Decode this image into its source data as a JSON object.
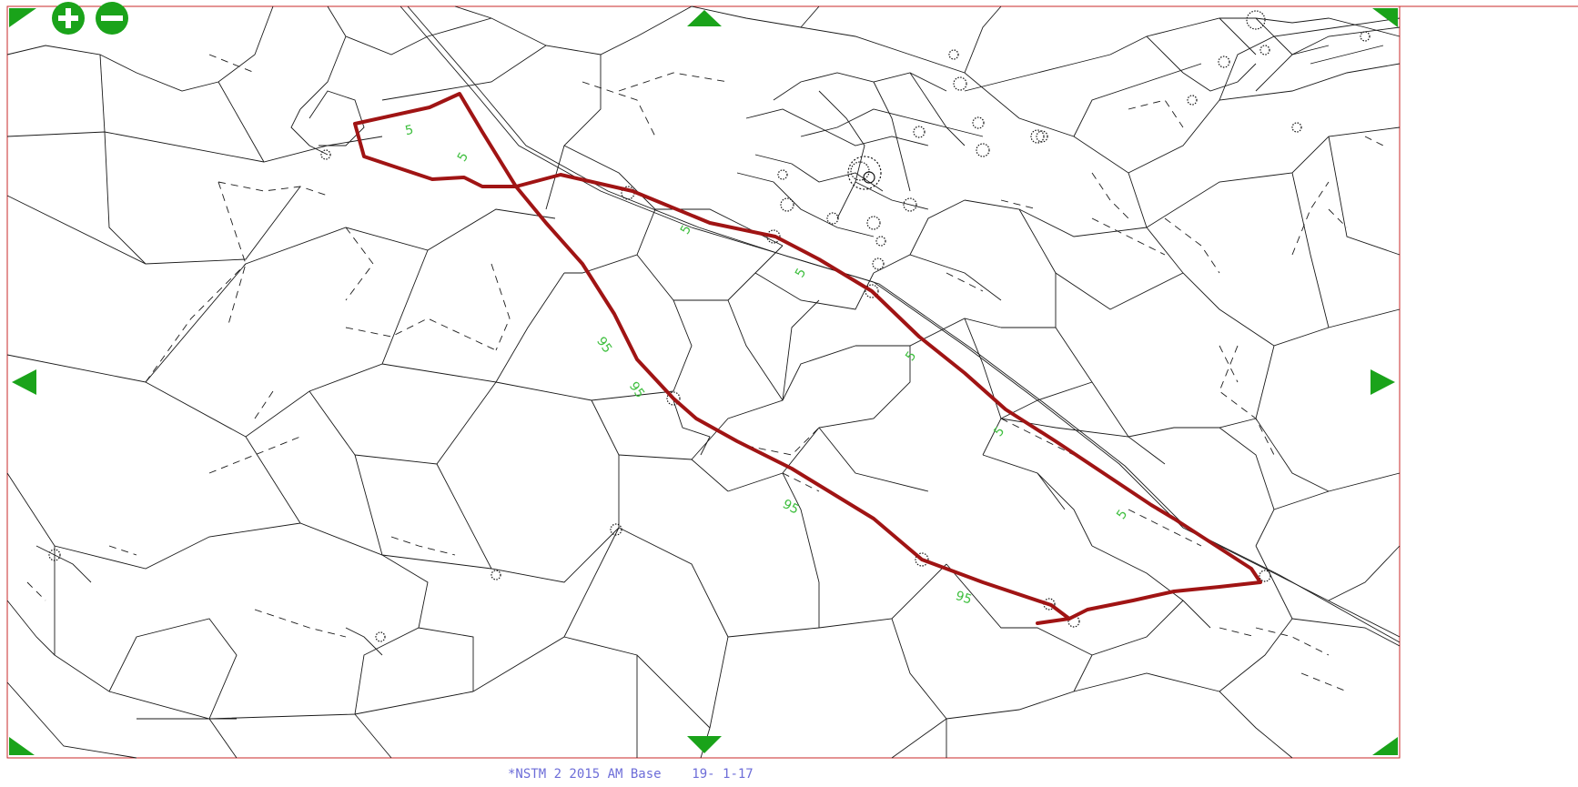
{
  "caption": {
    "scenario": "*NSTM 2 2015 AM Base",
    "date": "19- 1-17"
  },
  "map": {
    "route_color": "#a01414",
    "frame_color": "#c82828",
    "network_color": "#1a1a1a",
    "control_color": "#1aa31a",
    "label_color": "#3fbf3f",
    "route_labels": [
      "5",
      "5",
      "5",
      "5",
      "5",
      "5",
      "5",
      "95",
      "95",
      "95",
      "95"
    ]
  },
  "controls": {
    "zoom_in_icon": "plus-circle-icon",
    "zoom_out_icon": "minus-circle-icon",
    "pan_up_icon": "triangle-up-icon",
    "pan_down_icon": "triangle-down-icon",
    "pan_left_icon": "triangle-left-icon",
    "pan_right_icon": "triangle-right-icon"
  }
}
